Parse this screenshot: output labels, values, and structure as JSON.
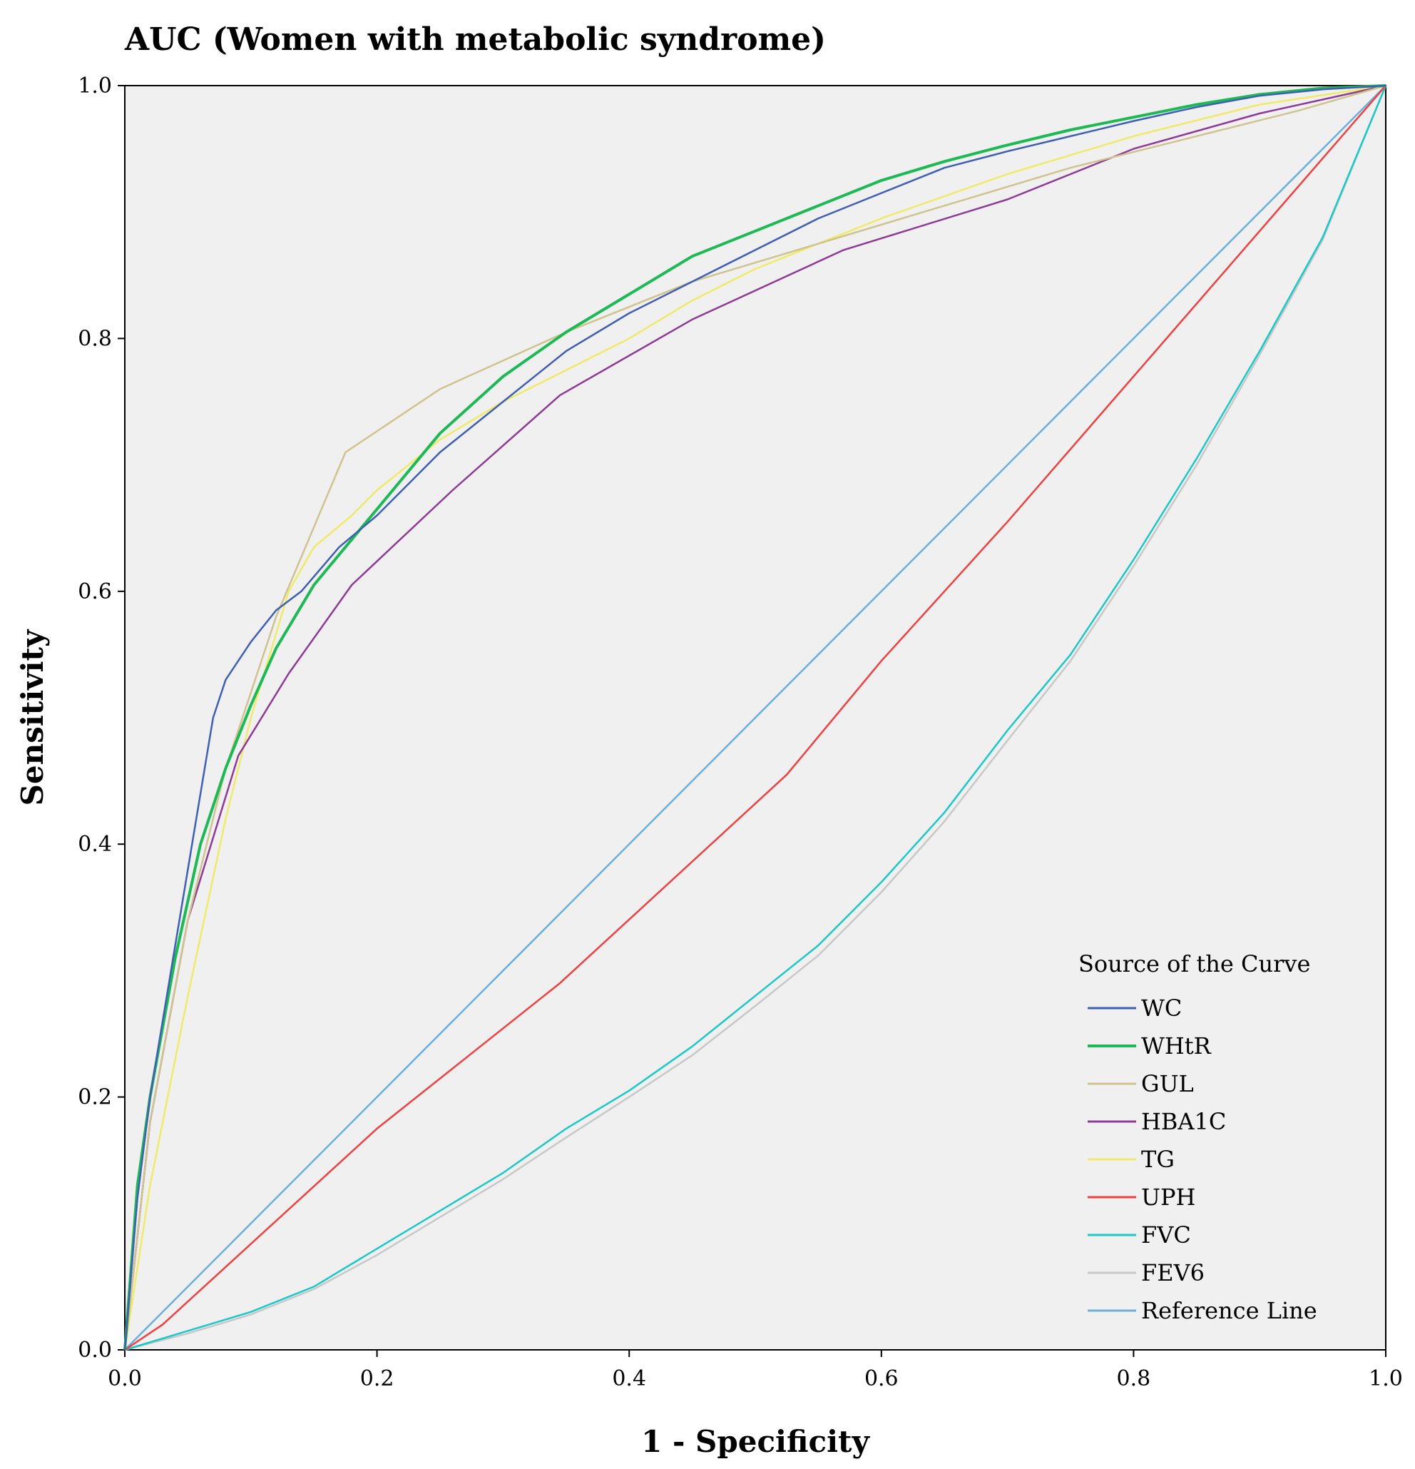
{
  "chart_data": {
    "type": "line",
    "title": "AUC (Women with metabolic syndrome)",
    "xlabel": "1 - Specificity",
    "ylabel": "Sensitivity",
    "xlim": [
      0,
      1
    ],
    "ylim": [
      0,
      1
    ],
    "x_ticks": [
      "0.0",
      "0.2",
      "0.4",
      "0.6",
      "0.8",
      "1.0"
    ],
    "y_ticks": [
      "0.0",
      "0.2",
      "0.4",
      "0.6",
      "0.8",
      "1.0"
    ],
    "grid": false,
    "legend": {
      "title": "Source of the Curve",
      "placement": "bottom-right"
    },
    "series": [
      {
        "name": "WC",
        "color": "#3f5fb5",
        "points": [
          [
            0,
            0
          ],
          [
            0.01,
            0.12
          ],
          [
            0.02,
            0.2
          ],
          [
            0.04,
            0.32
          ],
          [
            0.06,
            0.44
          ],
          [
            0.07,
            0.5
          ],
          [
            0.08,
            0.53
          ],
          [
            0.1,
            0.56
          ],
          [
            0.12,
            0.585
          ],
          [
            0.14,
            0.6
          ],
          [
            0.17,
            0.635
          ],
          [
            0.2,
            0.66
          ],
          [
            0.25,
            0.71
          ],
          [
            0.3,
            0.75
          ],
          [
            0.35,
            0.79
          ],
          [
            0.4,
            0.82
          ],
          [
            0.45,
            0.845
          ],
          [
            0.5,
            0.87
          ],
          [
            0.55,
            0.895
          ],
          [
            0.6,
            0.915
          ],
          [
            0.65,
            0.935
          ],
          [
            0.7,
            0.948
          ],
          [
            0.75,
            0.96
          ],
          [
            0.8,
            0.972
          ],
          [
            0.85,
            0.983
          ],
          [
            0.9,
            0.992
          ],
          [
            0.95,
            0.997
          ],
          [
            1,
            1
          ]
        ]
      },
      {
        "name": "WHtR",
        "color": "#1db954",
        "points": [
          [
            0,
            0
          ],
          [
            0.01,
            0.13
          ],
          [
            0.02,
            0.2
          ],
          [
            0.04,
            0.31
          ],
          [
            0.06,
            0.4
          ],
          [
            0.08,
            0.46
          ],
          [
            0.1,
            0.51
          ],
          [
            0.12,
            0.555
          ],
          [
            0.15,
            0.605
          ],
          [
            0.2,
            0.665
          ],
          [
            0.25,
            0.725
          ],
          [
            0.3,
            0.77
          ],
          [
            0.35,
            0.805
          ],
          [
            0.4,
            0.835
          ],
          [
            0.45,
            0.865
          ],
          [
            0.5,
            0.885
          ],
          [
            0.55,
            0.905
          ],
          [
            0.6,
            0.925
          ],
          [
            0.65,
            0.94
          ],
          [
            0.7,
            0.953
          ],
          [
            0.75,
            0.965
          ],
          [
            0.8,
            0.975
          ],
          [
            0.85,
            0.985
          ],
          [
            0.9,
            0.993
          ],
          [
            0.95,
            0.998
          ],
          [
            1,
            1
          ]
        ]
      },
      {
        "name": "GUL",
        "color": "#cfc38f",
        "points": [
          [
            0,
            0
          ],
          [
            0.02,
            0.18
          ],
          [
            0.05,
            0.34
          ],
          [
            0.08,
            0.46
          ],
          [
            0.12,
            0.58
          ],
          [
            0.175,
            0.71
          ],
          [
            0.25,
            0.76
          ],
          [
            0.35,
            0.805
          ],
          [
            0.45,
            0.845
          ],
          [
            0.55,
            0.875
          ],
          [
            0.65,
            0.905
          ],
          [
            0.75,
            0.935
          ],
          [
            0.85,
            0.96
          ],
          [
            0.93,
            0.98
          ],
          [
            1,
            1
          ]
        ]
      },
      {
        "name": "HBA1C",
        "color": "#8e3a96",
        "points": [
          [
            0,
            0
          ],
          [
            0.02,
            0.18
          ],
          [
            0.05,
            0.34
          ],
          [
            0.09,
            0.47
          ],
          [
            0.13,
            0.535
          ],
          [
            0.18,
            0.605
          ],
          [
            0.26,
            0.68
          ],
          [
            0.345,
            0.755
          ],
          [
            0.45,
            0.815
          ],
          [
            0.57,
            0.87
          ],
          [
            0.7,
            0.91
          ],
          [
            0.8,
            0.95
          ],
          [
            0.9,
            0.978
          ],
          [
            1,
            1
          ]
        ]
      },
      {
        "name": "TG",
        "color": "#f0ea6a",
        "points": [
          [
            0,
            0
          ],
          [
            0.02,
            0.13
          ],
          [
            0.05,
            0.28
          ],
          [
            0.08,
            0.42
          ],
          [
            0.1,
            0.5
          ],
          [
            0.13,
            0.6
          ],
          [
            0.15,
            0.635
          ],
          [
            0.18,
            0.66
          ],
          [
            0.2,
            0.68
          ],
          [
            0.25,
            0.72
          ],
          [
            0.3,
            0.75
          ],
          [
            0.35,
            0.775
          ],
          [
            0.4,
            0.8
          ],
          [
            0.45,
            0.83
          ],
          [
            0.5,
            0.855
          ],
          [
            0.6,
            0.895
          ],
          [
            0.7,
            0.93
          ],
          [
            0.8,
            0.96
          ],
          [
            0.9,
            0.985
          ],
          [
            1,
            1
          ]
        ]
      },
      {
        "name": "UPH",
        "color": "#f04040",
        "points": [
          [
            0,
            0
          ],
          [
            0.03,
            0.02
          ],
          [
            0.2,
            0.175
          ],
          [
            0.345,
            0.29
          ],
          [
            0.525,
            0.455
          ],
          [
            0.6,
            0.545
          ],
          [
            0.7,
            0.655
          ],
          [
            0.8,
            0.77
          ],
          [
            0.9,
            0.885
          ],
          [
            1,
            1
          ]
        ]
      },
      {
        "name": "FVC",
        "color": "#1cc8c8",
        "points": [
          [
            0,
            0
          ],
          [
            0.05,
            0.015
          ],
          [
            0.1,
            0.03
          ],
          [
            0.15,
            0.05
          ],
          [
            0.2,
            0.08
          ],
          [
            0.25,
            0.11
          ],
          [
            0.3,
            0.14
          ],
          [
            0.35,
            0.175
          ],
          [
            0.4,
            0.205
          ],
          [
            0.45,
            0.24
          ],
          [
            0.5,
            0.28
          ],
          [
            0.55,
            0.32
          ],
          [
            0.6,
            0.37
          ],
          [
            0.65,
            0.425
          ],
          [
            0.7,
            0.49
          ],
          [
            0.75,
            0.55
          ],
          [
            0.8,
            0.625
          ],
          [
            0.85,
            0.705
          ],
          [
            0.9,
            0.79
          ],
          [
            0.95,
            0.88
          ],
          [
            1,
            1
          ]
        ]
      },
      {
        "name": "FEV6",
        "color": "#c8c8c8",
        "points": [
          [
            0,
            0
          ],
          [
            0.05,
            0.013
          ],
          [
            0.1,
            0.028
          ],
          [
            0.15,
            0.048
          ],
          [
            0.2,
            0.075
          ],
          [
            0.25,
            0.105
          ],
          [
            0.3,
            0.135
          ],
          [
            0.35,
            0.168
          ],
          [
            0.4,
            0.2
          ],
          [
            0.45,
            0.233
          ],
          [
            0.5,
            0.272
          ],
          [
            0.55,
            0.312
          ],
          [
            0.6,
            0.362
          ],
          [
            0.65,
            0.418
          ],
          [
            0.7,
            0.482
          ],
          [
            0.75,
            0.545
          ],
          [
            0.8,
            0.62
          ],
          [
            0.85,
            0.7
          ],
          [
            0.9,
            0.787
          ],
          [
            0.95,
            0.878
          ],
          [
            1,
            1
          ]
        ]
      },
      {
        "name": "Reference Line",
        "color": "#6ab0dc",
        "points": [
          [
            0,
            0
          ],
          [
            1,
            1
          ]
        ]
      }
    ]
  }
}
